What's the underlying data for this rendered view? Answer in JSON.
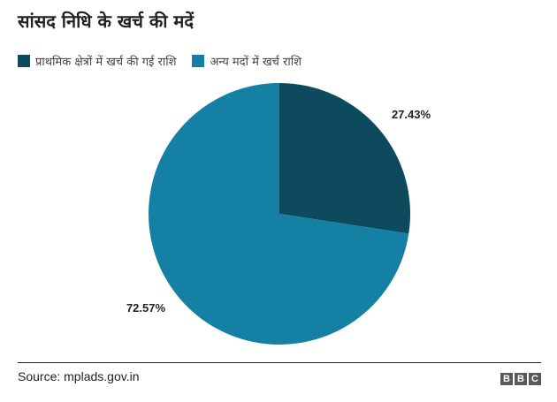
{
  "title": "सांसद निधि के खर्च की मदें",
  "source": "Source: mplads.gov.in",
  "logo": [
    "B",
    "B",
    "C"
  ],
  "chart_data": {
    "type": "pie",
    "start_angle_deg": 0,
    "direction": "clockwise",
    "legend_position": "top-left",
    "slices": [
      {
        "label": "प्राथमिक क्षेत्रों में खर्च की गई राशि",
        "value": 27.43,
        "value_label": "27.43%",
        "color": "#0d4a5e"
      },
      {
        "label": "अन्य मदों में खर्च राशि",
        "value": 72.57,
        "value_label": "72.57%",
        "color": "#1481a4"
      }
    ]
  }
}
